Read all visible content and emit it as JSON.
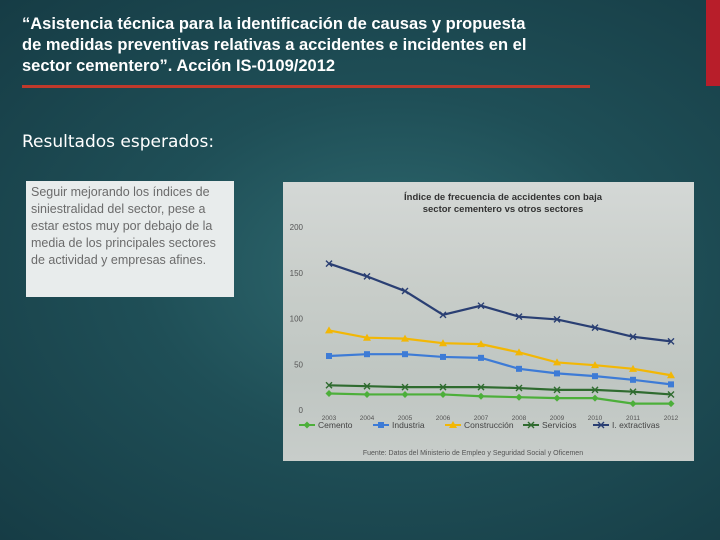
{
  "slide": {
    "title_lines": [
      "“Asistencia técnica para la identificación de causas y propuesta",
      "de medidas preventivas relativas a accidentes e incidentes en el",
      "sector cementero”. Acción IS-0109/2012"
    ],
    "subtitle": "Resultados esperados:",
    "body_text": "Seguir mejorando los índices de siniestralidad del sector, pese a estar estos muy por debajo de la media de los principales sectores de actividad y empresas afines.",
    "accent_color": "#c0392b"
  },
  "chart_data": {
    "type": "line",
    "title_lines": [
      "Índice de frecuencia de accidentes con baja",
      "sector cementero vs otros sectores"
    ],
    "categories": [
      "2003",
      "2004",
      "2005",
      "2006",
      "2007",
      "2008",
      "2009",
      "2010",
      "2011",
      "2012"
    ],
    "ylim": [
      0,
      200
    ],
    "yticks": [
      "200",
      "150",
      "100",
      "50",
      "0"
    ],
    "series": [
      {
        "name": "Cemento",
        "color": "#4caf3a",
        "marker": "diamond",
        "values": [
          18,
          17,
          17,
          17,
          15,
          14,
          13,
          13,
          7,
          7
        ]
      },
      {
        "name": "Industria",
        "color": "#3d7bd6",
        "marker": "square",
        "values": [
          59,
          61,
          61,
          58,
          57,
          45,
          40,
          37,
          33,
          28
        ]
      },
      {
        "name": "Construcción",
        "color": "#f2b705",
        "marker": "triangle",
        "values": [
          87,
          79,
          78,
          73,
          72,
          63,
          52,
          49,
          45,
          38
        ]
      },
      {
        "name": "Servicios",
        "color": "#2f6b2f",
        "marker": "x",
        "values": [
          27,
          26,
          25,
          25,
          25,
          24,
          22,
          22,
          20,
          17
        ]
      },
      {
        "name": "I. extractivas",
        "color": "#2a3f73",
        "marker": "x",
        "values": [
          160,
          146,
          130,
          104,
          114,
          102,
          99,
          90,
          80,
          75
        ]
      }
    ],
    "legend": [
      "Cemento",
      "Industria",
      "Construcción",
      "Servicios",
      "I. extractivas"
    ],
    "source": "Fuente: Datos del Ministerio de Empleo y Seguridad Social y Oficemen"
  }
}
